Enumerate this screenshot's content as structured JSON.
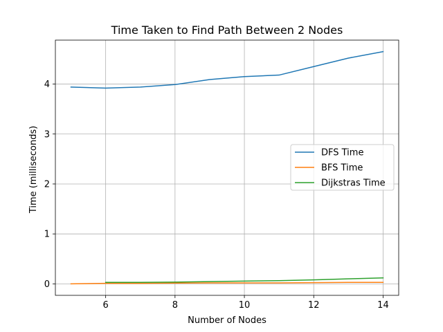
{
  "chart_data": {
    "type": "line",
    "title": "Time Taken to Find Path Between 2 Nodes",
    "xlabel": "Number of Nodes",
    "ylabel": "Time (milliseconds)",
    "xlim": [
      4.55,
      14.45
    ],
    "ylim": [
      -0.23,
      4.88
    ],
    "xticks": [
      6,
      8,
      10,
      12,
      14
    ],
    "yticks": [
      0,
      1,
      2,
      3,
      4
    ],
    "grid": true,
    "legend_position": "center-right",
    "series": [
      {
        "name": "DFS Time",
        "color": "#1f77b4",
        "x": [
          5,
          6,
          7,
          8,
          9,
          10,
          11,
          12,
          13,
          14
        ],
        "y": [
          3.94,
          3.92,
          3.94,
          3.99,
          4.09,
          4.15,
          4.18,
          4.35,
          4.52,
          4.65
        ]
      },
      {
        "name": "BFS Time",
        "color": "#ff7f0e",
        "x": [
          5,
          6,
          7,
          8,
          9,
          10,
          11,
          12,
          13,
          14
        ],
        "y": [
          0.0,
          0.01,
          0.01,
          0.015,
          0.02,
          0.02,
          0.02,
          0.025,
          0.03,
          0.03
        ]
      },
      {
        "name": "Dijkstras Time",
        "color": "#2ca02c",
        "x": [
          6,
          7,
          8,
          9,
          10,
          11,
          12,
          13,
          14
        ],
        "y": [
          0.03,
          0.03,
          0.035,
          0.045,
          0.055,
          0.065,
          0.08,
          0.1,
          0.12
        ]
      }
    ]
  }
}
